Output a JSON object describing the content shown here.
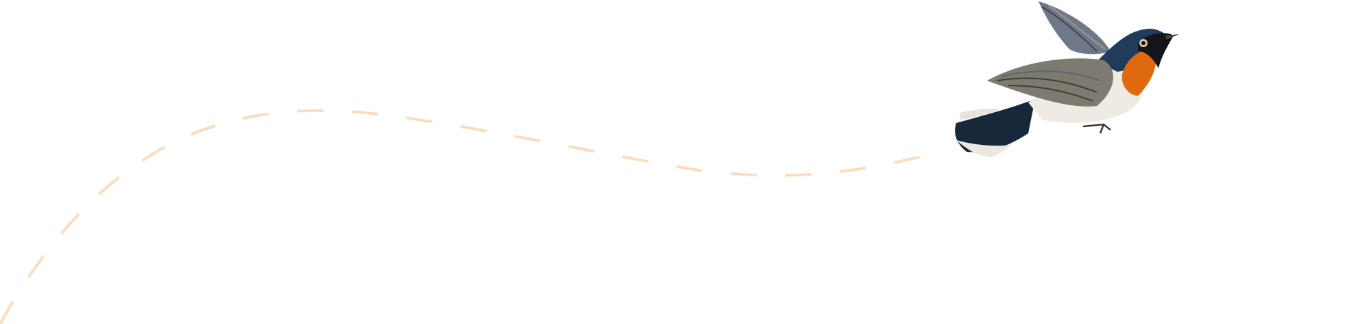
{
  "colors": {
    "background": "#ffffff",
    "flight_path": "#fbdcbc",
    "bird_blue": "#1f3a55",
    "bird_orange": "#e0680f",
    "bird_wing": "#7d7a70",
    "bird_belly": "#efebe2"
  },
  "illustration": {
    "subject": "bird-flycatcher",
    "path_style": "dashed"
  }
}
